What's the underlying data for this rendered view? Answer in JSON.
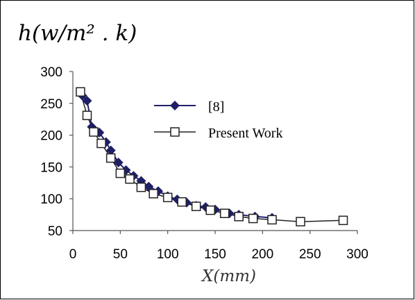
{
  "chart_data": {
    "type": "line",
    "ylabel": "h(w/m² . k)",
    "xlabel": "X(mm)",
    "xlim": [
      0,
      300
    ],
    "ylim": [
      50,
      300
    ],
    "xticks": [
      0,
      50,
      100,
      150,
      200,
      250,
      300
    ],
    "yticks": [
      50,
      100,
      150,
      200,
      250,
      300
    ],
    "grid": false,
    "legend": "upper-middle",
    "series": [
      {
        "name": "[8]",
        "marker": "diamond-filled",
        "color": "#1f1f66",
        "x": [
          10,
          15,
          20,
          28,
          35,
          40,
          48,
          56,
          64,
          72,
          80,
          90,
          100,
          110,
          120,
          130,
          140,
          150,
          165,
          175,
          192,
          210
        ],
        "y": [
          262,
          254,
          213,
          204,
          189,
          176,
          157,
          145,
          136,
          128,
          119,
          112,
          104,
          99,
          94,
          89,
          87,
          83,
          77,
          75,
          72,
          70
        ]
      },
      {
        "name": "Present Work",
        "marker": "square-open",
        "color": "#222222",
        "x": [
          8,
          15,
          22,
          30,
          40,
          50,
          60,
          72,
          85,
          100,
          115,
          130,
          145,
          160,
          175,
          190,
          210,
          240,
          285
        ],
        "y": [
          268,
          231,
          205,
          187,
          164,
          140,
          131,
          118,
          108,
          102,
          95,
          88,
          82,
          77,
          72,
          69,
          67,
          64,
          66
        ]
      }
    ]
  }
}
